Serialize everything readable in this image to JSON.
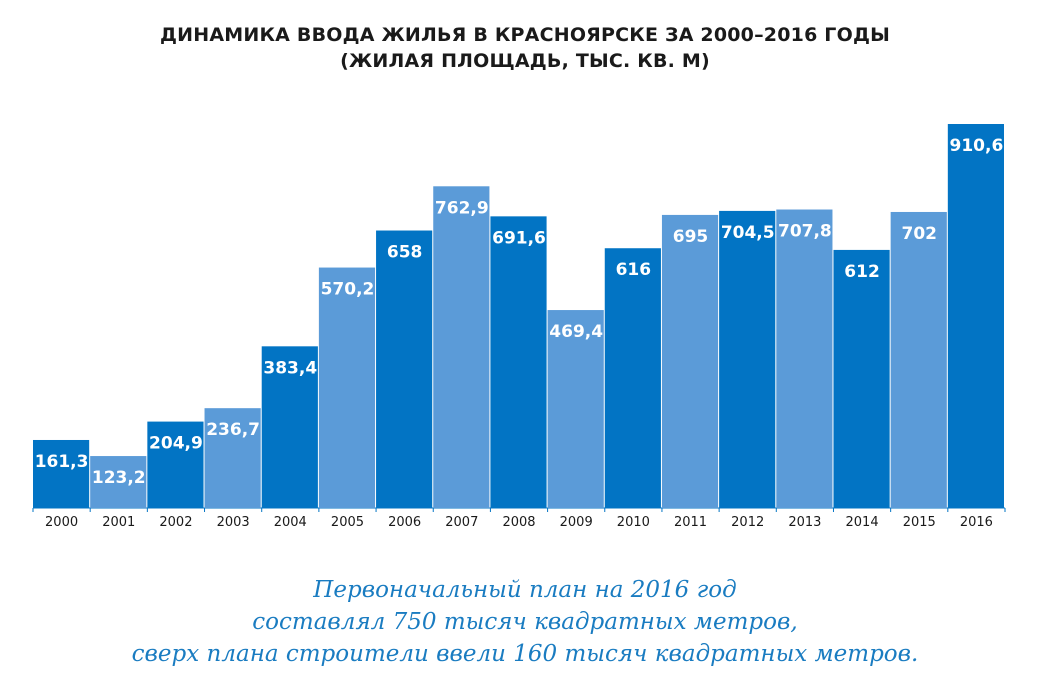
{
  "title": {
    "line1": "ДИНАМИКА ВВОДА ЖИЛЬЯ В КРАСНОЯРСКЕ ЗА 2000–2016 ГОДЫ",
    "line2": "(ЖИЛАЯ ПЛОЩАДЬ, ТЫС. КВ. М)"
  },
  "caption": {
    "line1": "Первоначальный план на 2016 год",
    "line2": "составлял 750 тысяч квадратных метров,",
    "line3": "сверх плана строители ввели 160 тысяч квадратных метров."
  },
  "colors": {
    "dark": "#0274c4",
    "light": "#5b9bd8",
    "text": "#1a1a1a",
    "caption": "#1a7cc1"
  },
  "chart_data": {
    "type": "bar",
    "title": "ДИНАМИКА ВВОДА ЖИЛЬЯ В КРАСНОЯРСКЕ ЗА 2000–2016 ГОДЫ (ЖИЛАЯ ПЛОЩАДЬ, ТЫС. КВ. М)",
    "xlabel": "",
    "ylabel": "",
    "grid": false,
    "legend": "none",
    "categories": [
      "2000",
      "2001",
      "2002",
      "2003",
      "2004",
      "2005",
      "2006",
      "2007",
      "2008",
      "2009",
      "2010",
      "2011",
      "2012",
      "2013",
      "2014",
      "2015",
      "2016"
    ],
    "values": [
      161.3,
      123.2,
      204.9,
      236.7,
      383.4,
      570.2,
      658,
      762.9,
      691.6,
      469.4,
      616,
      695,
      704.5,
      707.8,
      612,
      702,
      910.6
    ],
    "value_labels": [
      "161,3",
      "123,2",
      "204,9",
      "236,7",
      "383,4",
      "570,2",
      "658",
      "762,9",
      "691,6",
      "469,4",
      "616",
      "695",
      "704,5",
      "707,8",
      "612",
      "702",
      "910,6"
    ],
    "bar_colors": [
      "dark",
      "light",
      "dark",
      "light",
      "dark",
      "light",
      "dark",
      "light",
      "dark",
      "light",
      "dark",
      "light",
      "dark",
      "light",
      "dark",
      "light",
      "dark"
    ],
    "ylim": [
      0,
      910.6
    ]
  }
}
